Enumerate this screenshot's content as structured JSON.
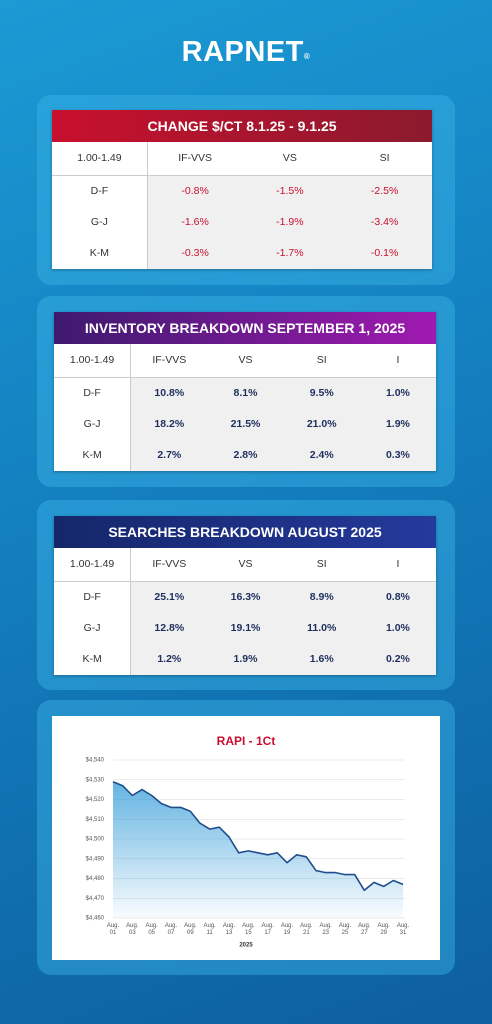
{
  "brand": "RAPNET",
  "brand_mark": "®",
  "tables": [
    {
      "title": "CHANGE  $/CT 8.1.25 - 9.1.25",
      "header": [
        "1.00-1.49",
        "IF-VVS",
        "VS",
        "SI"
      ],
      "rows": [
        [
          "D-F",
          "-0.8%",
          "-1.5%",
          "-2.5%"
        ],
        [
          "G-J",
          "-1.6%",
          "-1.9%",
          "-3.4%"
        ],
        [
          "K-M",
          "-0.3%",
          "-1.7%",
          "-0.1%"
        ]
      ]
    },
    {
      "title": "INVENTORY BREAKDOWN SEPTEMBER 1, 2025",
      "header": [
        "1.00-1.49",
        "IF-VVS",
        "VS",
        "SI",
        "I"
      ],
      "rows": [
        [
          "D-F",
          "10.8%",
          "8.1%",
          "9.5%",
          "1.0%"
        ],
        [
          "G-J",
          "18.2%",
          "21.5%",
          "21.0%",
          "1.9%"
        ],
        [
          "K-M",
          "2.7%",
          "2.8%",
          "2.4%",
          "0.3%"
        ]
      ]
    },
    {
      "title": "SEARCHES BREAKDOWN AUGUST 2025",
      "header": [
        "1.00-1.49",
        "IF-VVS",
        "VS",
        "SI",
        "I"
      ],
      "rows": [
        [
          "D-F",
          "25.1%",
          "16.3%",
          "8.9%",
          "0.8%"
        ],
        [
          "G-J",
          "12.8%",
          "19.1%",
          "11.0%",
          "1.0%"
        ],
        [
          "K-M",
          "1.2%",
          "1.9%",
          "1.6%",
          "0.2%"
        ]
      ]
    }
  ],
  "chart_data": {
    "type": "line",
    "title": "RAPI - 1Ct",
    "x_label": "2025",
    "categories": [
      "Aug. 01",
      null,
      "Aug. 03",
      null,
      "Aug. 05",
      null,
      "Aug. 07",
      null,
      "Aug. 09",
      null,
      "Aug. 11",
      null,
      "Aug. 13",
      null,
      "Aug. 15",
      null,
      "Aug. 17",
      null,
      "Aug. 19",
      null,
      "Aug. 21",
      null,
      "Aug. 23",
      null,
      "Aug. 25",
      null,
      "Aug. 27",
      null,
      "Aug. 29",
      null,
      "Aug. 31"
    ],
    "values": [
      4529,
      4527,
      4522,
      4525,
      4522,
      4518,
      4516,
      4516,
      4514,
      4508,
      4505,
      4506,
      4501,
      4493,
      4494,
      4493,
      4492,
      4493,
      4488,
      4492,
      4491,
      4484,
      4483,
      4483,
      4482,
      4482,
      4474,
      4478,
      4476,
      4479,
      4477
    ],
    "color": "#1f4e8c",
    "ylim": [
      4460,
      4540
    ],
    "yticks": [
      {
        "value": 4460,
        "label": "$4,460"
      },
      {
        "value": 4470,
        "label": "$4,470"
      },
      {
        "value": 4480,
        "label": "$4,480"
      },
      {
        "value": 4490,
        "label": "$4,490"
      },
      {
        "value": 4500,
        "label": "$4,500"
      },
      {
        "value": 4510,
        "label": "$4,510"
      },
      {
        "value": 4520,
        "label": "$4,520"
      },
      {
        "value": 4530,
        "label": "$4,530"
      },
      {
        "value": 4540,
        "label": "$4,540"
      }
    ],
    "grid": true
  }
}
